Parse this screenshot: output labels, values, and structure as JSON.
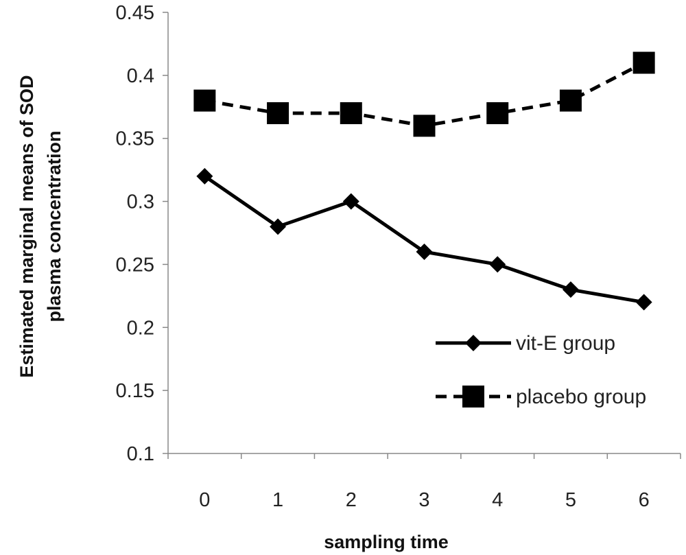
{
  "chart_data": {
    "type": "line",
    "title": "",
    "xlabel": "sampling time",
    "ylabel_lines": [
      "Estimated marginal means of SOD",
      "plasma concentration"
    ],
    "categories": [
      "0",
      "1",
      "2",
      "3",
      "4",
      "5",
      "6"
    ],
    "y_ticks": [
      "0.1",
      "0.15",
      "0.2",
      "0.25",
      "0.3",
      "0.35",
      "0.4",
      "0.45"
    ],
    "ylim": [
      0.1,
      0.45
    ],
    "grid": false,
    "legend_position": "bottom-right",
    "series": [
      {
        "name": "vit-E group",
        "line_style": "solid",
        "marker": "diamond",
        "color": "#000000",
        "values": [
          0.32,
          0.28,
          0.3,
          0.26,
          0.25,
          0.23,
          0.22
        ]
      },
      {
        "name": "placebo group",
        "line_style": "dashed",
        "marker": "square",
        "color": "#000000",
        "values": [
          0.38,
          0.37,
          0.37,
          0.36,
          0.37,
          0.38,
          0.41
        ]
      }
    ]
  }
}
